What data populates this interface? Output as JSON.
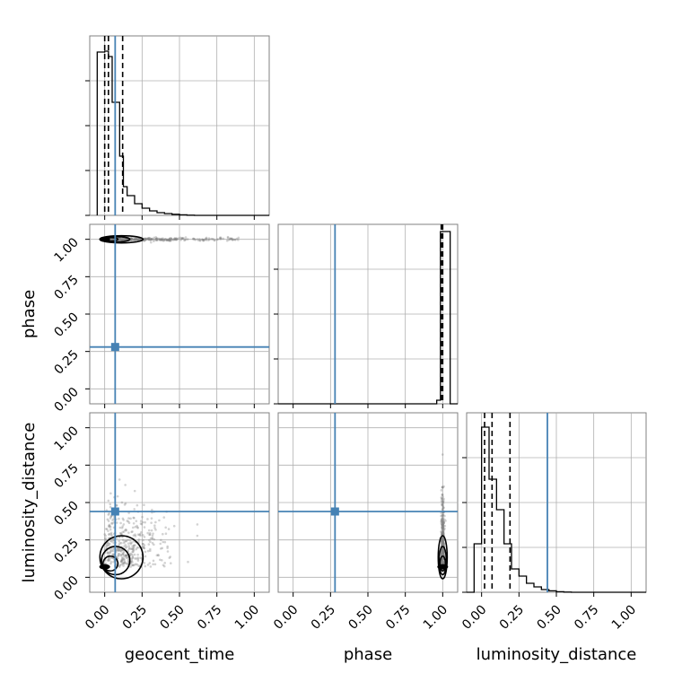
{
  "chart_data": {
    "type": "corner",
    "parameters": [
      "geocent_time",
      "phase",
      "luminosity_distance"
    ],
    "axis_labels": {
      "x": [
        "geocent_time",
        "phase",
        "luminosity_distance"
      ],
      "y": [
        "phase",
        "luminosity_distance"
      ]
    },
    "range": [
      -0.1,
      1.1
    ],
    "ticks": [
      0.0,
      0.25,
      0.5,
      0.75,
      1.0
    ],
    "tick_labels": [
      "0.00",
      "0.25",
      "0.50",
      "0.75",
      "1.00"
    ],
    "grid": true,
    "colors": {
      "truth": "#4682b4",
      "hist": "#000000",
      "samples": "#808080"
    },
    "truths": {
      "geocent_time": 0.07,
      "phase": 0.28,
      "luminosity_distance": 0.44
    },
    "histograms": [
      {
        "parameter": "geocent_time",
        "bin_edges": [
          -0.05,
          0.0,
          0.025,
          0.05,
          0.1,
          0.125,
          0.15,
          0.2,
          0.25,
          0.3,
          0.35,
          0.4,
          0.45,
          0.5,
          0.55,
          0.6,
          1.1
        ],
        "counts": [
          0.91,
          0.915,
          0.885,
          0.63,
          0.33,
          0.16,
          0.11,
          0.065,
          0.04,
          0.025,
          0.015,
          0.01,
          0.006,
          0.003,
          0.001,
          0.0
        ],
        "quantiles": [
          0.0,
          0.025,
          0.12
        ]
      },
      {
        "parameter": "phase",
        "bin_edges": [
          -0.1,
          0.96,
          0.985,
          1.05,
          1.1
        ],
        "counts": [
          0.0,
          0.02,
          0.96,
          0.0
        ],
        "quantiles": [
          0.99,
          1.0
        ]
      },
      {
        "parameter": "luminosity_distance",
        "bin_edges": [
          -0.1,
          -0.05,
          0.0,
          0.05,
          0.1,
          0.15,
          0.2,
          0.25,
          0.3,
          0.35,
          0.4,
          0.45,
          0.5,
          0.55,
          0.6,
          1.1
        ],
        "counts": [
          0.0,
          0.27,
          0.92,
          0.63,
          0.46,
          0.27,
          0.13,
          0.09,
          0.05,
          0.03,
          0.015,
          0.008,
          0.003,
          0.001,
          0.0
        ],
        "quantiles": [
          0.02,
          0.07,
          0.19
        ]
      }
    ],
    "scatter_samples": {
      "phase_vs_geocent_time": {
        "center": [
          0.0,
          1.0
        ],
        "spread_x": 0.2,
        "spread_y": 0.005,
        "tail_x_max": 0.9
      },
      "luminosity_distance_vs_geocent_time": {
        "center": [
          0.0,
          0.07
        ],
        "spread_x": 0.2,
        "spread_y": 0.2
      },
      "luminosity_distance_vs_phase": {
        "center": [
          1.0,
          0.07
        ],
        "spread_x": 0.005,
        "spread_y": 0.2
      }
    }
  }
}
